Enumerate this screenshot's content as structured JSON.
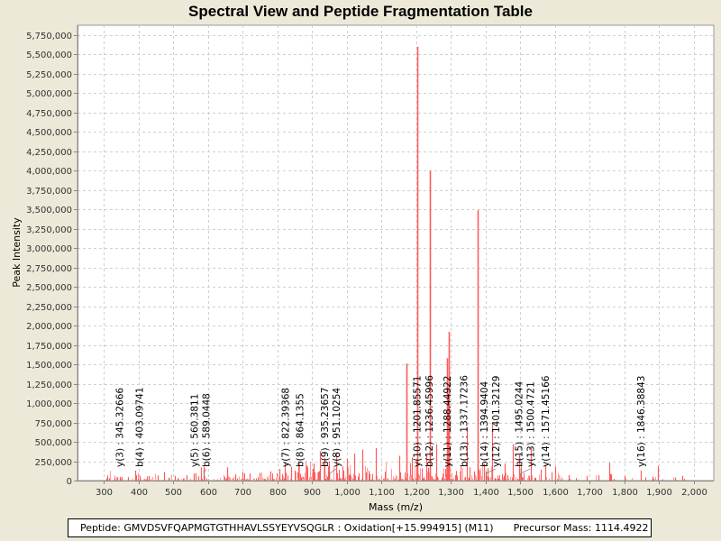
{
  "chart_data": {
    "type": "bar",
    "title": "Spectral View and Peptide Fragmentation Table",
    "xlabel": "Mass (m/z)",
    "ylabel": "Peak Intensity",
    "xlim": [
      250,
      2060
    ],
    "ylim": [
      0,
      5900000
    ],
    "grid": true,
    "x_ticks": [
      300,
      400,
      500,
      600,
      700,
      800,
      900,
      1000,
      1100,
      1200,
      1300,
      1400,
      1500,
      1600,
      1700,
      1800,
      1900,
      2000
    ],
    "x_tick_labels": [
      "300",
      "400",
      "500",
      "600",
      "700",
      "800",
      "900",
      "1,000",
      "1,100",
      "1,200",
      "1,300",
      "1,400",
      "1,500",
      "1,600",
      "1,700",
      "1,800",
      "1,900",
      "2,000"
    ],
    "y_ticks": [
      0,
      250000,
      500000,
      750000,
      1000000,
      1250000,
      1500000,
      1750000,
      2000000,
      2250000,
      2500000,
      2750000,
      3000000,
      3250000,
      3500000,
      3750000,
      4000000,
      4250000,
      4500000,
      4750000,
      5000000,
      5250000,
      5500000,
      5750000
    ],
    "y_tick_labels": [
      "0",
      "250,000",
      "500,000",
      "750,000",
      "1,000,000",
      "1,250,000",
      "1,500,000",
      "1,750,000",
      "2,000,000",
      "2,250,000",
      "2,500,000",
      "2,750,000",
      "3,000,000",
      "3,250,000",
      "3,500,000",
      "3,750,000",
      "4,000,000",
      "4,250,000",
      "4,500,000",
      "4,750,000",
      "5,000,000",
      "5,250,000",
      "5,500,000",
      "5,750,000"
    ],
    "series_color": "#ff5a5a",
    "peaks": [
      {
        "mz": 1203.0,
        "intensity": 5600000
      },
      {
        "mz": 1240.0,
        "intensity": 4000000
      },
      {
        "mz": 1377.0,
        "intensity": 3490000
      },
      {
        "mz": 1294.0,
        "intensity": 1920000
      },
      {
        "mz": 1289.5,
        "intensity": 1580000
      },
      {
        "mz": 1172.0,
        "intensity": 1510000
      },
      {
        "mz": 1418.0,
        "intensity": 750000
      },
      {
        "mz": 1346.0,
        "intensity": 690000
      },
      {
        "mz": 1290.8,
        "intensity": 980000
      },
      {
        "mz": 1257.0,
        "intensity": 470000
      },
      {
        "mz": 1230.0,
        "intensity": 330000
      },
      {
        "mz": 1187.0,
        "intensity": 300000
      },
      {
        "mz": 1152.0,
        "intensity": 320000
      },
      {
        "mz": 1085.0,
        "intensity": 420000
      },
      {
        "mz": 1045.0,
        "intensity": 400000
      },
      {
        "mz": 1022.0,
        "intensity": 350000
      },
      {
        "mz": 1000.0,
        "intensity": 280000
      },
      {
        "mz": 970.0,
        "intensity": 360000
      },
      {
        "mz": 950.0,
        "intensity": 250000
      },
      {
        "mz": 936.0,
        "intensity": 290000
      },
      {
        "mz": 923.0,
        "intensity": 380000
      },
      {
        "mz": 905.0,
        "intensity": 220000
      },
      {
        "mz": 884.0,
        "intensity": 200000
      },
      {
        "mz": 860.0,
        "intensity": 250000
      },
      {
        "mz": 840.0,
        "intensity": 180000
      },
      {
        "mz": 822.0,
        "intensity": 240000
      },
      {
        "mz": 805.0,
        "intensity": 150000
      },
      {
        "mz": 780.0,
        "intensity": 120000
      },
      {
        "mz": 750.0,
        "intensity": 100000
      },
      {
        "mz": 720.0,
        "intensity": 90000
      },
      {
        "mz": 700.0,
        "intensity": 110000
      },
      {
        "mz": 680.0,
        "intensity": 80000
      },
      {
        "mz": 655.0,
        "intensity": 170000
      },
      {
        "mz": 589.0,
        "intensity": 180000
      },
      {
        "mz": 580.0,
        "intensity": 170000
      },
      {
        "mz": 560.0,
        "intensity": 90000
      },
      {
        "mz": 540.0,
        "intensity": 70000
      },
      {
        "mz": 505.0,
        "intensity": 60000
      },
      {
        "mz": 475.0,
        "intensity": 110000
      },
      {
        "mz": 455.0,
        "intensity": 65000
      },
      {
        "mz": 430.0,
        "intensity": 60000
      },
      {
        "mz": 403.0,
        "intensity": 60000
      },
      {
        "mz": 392.0,
        "intensity": 130000
      },
      {
        "mz": 370.0,
        "intensity": 45000
      },
      {
        "mz": 346.0,
        "intensity": 50000
      },
      {
        "mz": 330.0,
        "intensity": 40000
      },
      {
        "mz": 310.0,
        "intensity": 55000
      },
      {
        "mz": 1394.9,
        "intensity": 220000
      },
      {
        "mz": 1401.3,
        "intensity": 120000
      },
      {
        "mz": 1455.0,
        "intensity": 220000
      },
      {
        "mz": 1478.0,
        "intensity": 470000
      },
      {
        "mz": 1495.5,
        "intensity": 330000
      },
      {
        "mz": 1500.5,
        "intensity": 180000
      },
      {
        "mz": 1530.0,
        "intensity": 420000
      },
      {
        "mz": 1560.0,
        "intensity": 140000
      },
      {
        "mz": 1571.5,
        "intensity": 200000
      },
      {
        "mz": 1600.0,
        "intensity": 180000
      },
      {
        "mz": 1640.0,
        "intensity": 70000
      },
      {
        "mz": 1690.0,
        "intensity": 60000
      },
      {
        "mz": 1725.0,
        "intensity": 70000
      },
      {
        "mz": 1755.0,
        "intensity": 230000
      },
      {
        "mz": 1762.0,
        "intensity": 80000
      },
      {
        "mz": 1800.0,
        "intensity": 60000
      },
      {
        "mz": 1846.4,
        "intensity": 130000
      },
      {
        "mz": 1880.0,
        "intensity": 50000
      },
      {
        "mz": 1895.0,
        "intensity": 190000
      },
      {
        "mz": 1945.0,
        "intensity": 40000
      },
      {
        "mz": 1967.0,
        "intensity": 60000
      }
    ],
    "annotations": [
      {
        "label": "y(3) : 345.32666",
        "mz": 345.32666,
        "type": "y"
      },
      {
        "label": "b(4) : 403.09741",
        "mz": 403.09741,
        "type": "b"
      },
      {
        "label": "y(5) : 560.3811",
        "mz": 560.3811,
        "type": "y"
      },
      {
        "label": "b(6) : 589.0448",
        "mz": 589.0448,
        "type": "b"
      },
      {
        "label": "y(7) : 822.39368",
        "mz": 822.39368,
        "type": "y"
      },
      {
        "label": "b(8) : 864.1355",
        "mz": 864.1355,
        "type": "b"
      },
      {
        "label": "b(9) : 935.23657",
        "mz": 935.23657,
        "type": "b"
      },
      {
        "label": "y(8) : 951.10254",
        "mz": 951.10254,
        "type": "y"
      },
      {
        "label": "y(10) : 1201.85571",
        "mz": 1201.85571,
        "type": "y"
      },
      {
        "label": "b(12) : 1236.45996",
        "mz": 1236.45996,
        "type": "b"
      },
      {
        "label": "y(11) : 1288.44922",
        "mz": 1288.44922,
        "type": "y"
      },
      {
        "label": "b(13) : 1337.17236",
        "mz": 1337.17236,
        "type": "b"
      },
      {
        "label": "b(14) : 1394.9404",
        "mz": 1394.9404,
        "type": "b"
      },
      {
        "label": "y(12) : 1401.32129",
        "mz": 1401.32129,
        "type": "y"
      },
      {
        "label": "b(15) : 1495.0244",
        "mz": 1495.0244,
        "type": "b"
      },
      {
        "label": "y(13) : 1500.4721",
        "mz": 1500.4721,
        "type": "y"
      },
      {
        "label": "y(14) : 1571.45166",
        "mz": 1571.45166,
        "type": "y"
      },
      {
        "label": "y(16) : 1846.38843",
        "mz": 1846.38843,
        "type": "y"
      }
    ]
  },
  "footer": {
    "peptide_text": "Peptide: GMVDSVFQAPMGTGTHHAVLSSYEYVSQGLR : Oxidation[+15.994915] (M11)",
    "precursor_text": "Precursor Mass: 1114.4922"
  }
}
